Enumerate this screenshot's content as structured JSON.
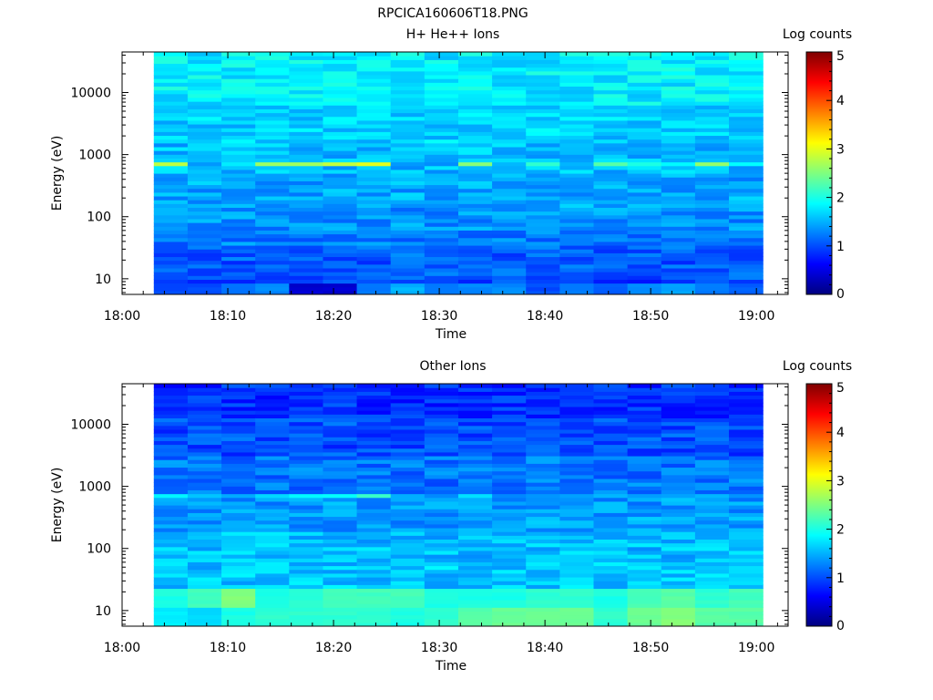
{
  "figure": {
    "title": "RPCICA160606T18.PNG"
  },
  "colormap_stops": [
    "#00007f",
    "#0000ff",
    "#007fff",
    "#00ffff",
    "#7fff7f",
    "#ffff00",
    "#ff7f00",
    "#ff0000",
    "#7f0000"
  ],
  "chart_data": [
    {
      "type": "heatmap",
      "title": "H+ He++ Ions",
      "xlabel": "Time",
      "ylabel": "Energy (eV)",
      "xticks": [
        "18:00",
        "18:10",
        "18:20",
        "18:30",
        "18:40",
        "18:50",
        "19:00"
      ],
      "xlim_minutes": [
        0,
        63
      ],
      "yscale": "log",
      "ylim": [
        5.6,
        45000
      ],
      "yticks": [
        10,
        100,
        1000,
        10000
      ],
      "ytick_labels": [
        "10",
        "100",
        "1000",
        "10000"
      ],
      "time_start_minutes": 3.0,
      "time_bin_minutes": 3.2,
      "n_time_bins": 18,
      "colorbar": {
        "label": "Log counts",
        "min": 0,
        "max": 5,
        "ticks": [
          "0",
          "1",
          "2",
          "3",
          "4",
          "5"
        ]
      },
      "profile": [
        {
          "energy_max": 10,
          "value": 0.95
        },
        {
          "energy_max": 20,
          "value": 1.05
        },
        {
          "energy_max": 35,
          "value": 1.1
        },
        {
          "energy_max": 60,
          "value": 1.25
        },
        {
          "energy_max": 150,
          "value": 1.35
        },
        {
          "energy_max": 500,
          "value": 1.45
        },
        {
          "energy_max": 1500,
          "value": 1.55
        },
        {
          "energy_max": 6000,
          "value": 1.65
        },
        {
          "energy_max": 45000,
          "value": 1.8
        }
      ],
      "features": [
        {
          "energy_min": 650,
          "energy_max": 800,
          "value_per_bin": [
            2.8,
            0,
            0,
            2.6,
            2.7,
            2.8,
            3.0,
            0,
            0,
            2.5,
            0,
            2.1,
            0,
            2.3,
            2.0,
            1.9,
            2.6,
            1.9
          ]
        },
        {
          "energy_min": 6,
          "energy_max": 9,
          "value_per_bin": [
            1.0,
            1.0,
            1.2,
            1.3,
            0.4,
            0.4,
            1.2,
            1.5,
            1.2,
            1.3,
            1.3,
            1.0,
            1.2,
            1.1,
            1.3,
            1.4,
            1.2,
            1.1
          ]
        }
      ]
    },
    {
      "type": "heatmap",
      "title": "Other Ions",
      "xlabel": "Time",
      "ylabel": "Energy (eV)",
      "xticks": [
        "18:00",
        "18:10",
        "18:20",
        "18:30",
        "18:40",
        "18:50",
        "19:00"
      ],
      "xlim_minutes": [
        0,
        63
      ],
      "yscale": "log",
      "ylim": [
        5.6,
        45000
      ],
      "yticks": [
        10,
        100,
        1000,
        10000
      ],
      "ytick_labels": [
        "10",
        "100",
        "1000",
        "10000"
      ],
      "time_start_minutes": 3.0,
      "time_bin_minutes": 3.2,
      "n_time_bins": 18,
      "colorbar": {
        "label": "Log counts",
        "min": 0,
        "max": 5,
        "ticks": [
          "0",
          "1",
          "2",
          "3",
          "4",
          "5"
        ]
      },
      "profile": [
        {
          "energy_max": 11,
          "value": 1.95
        },
        {
          "energy_max": 22,
          "value": 2.05
        },
        {
          "energy_max": 60,
          "value": 1.6
        },
        {
          "energy_max": 200,
          "value": 1.55
        },
        {
          "energy_max": 800,
          "value": 1.4
        },
        {
          "energy_max": 3000,
          "value": 1.2
        },
        {
          "energy_max": 12000,
          "value": 1.0
        },
        {
          "energy_max": 45000,
          "value": 0.85
        }
      ],
      "features": [
        {
          "energy_min": 650,
          "energy_max": 800,
          "value_per_bin": [
            1.8,
            1.6,
            1.5,
            1.7,
            1.8,
            1.9,
            2.1,
            1.5,
            1.3,
            1.7,
            1.3,
            1.4,
            1.4,
            1.5,
            1.4,
            1.4,
            1.5,
            1.4
          ]
        },
        {
          "energy_min": 11,
          "energy_max": 22,
          "value_per_bin": [
            2.0,
            2.2,
            2.5,
            2.0,
            2.1,
            2.2,
            2.2,
            2.2,
            2.0,
            2.0,
            2.0,
            2.1,
            2.1,
            2.0,
            2.2,
            2.3,
            2.1,
            2.2
          ]
        },
        {
          "energy_min": 6,
          "energy_max": 11,
          "value_per_bin": [
            1.8,
            1.7,
            2.0,
            2.1,
            2.1,
            2.1,
            2.1,
            2.0,
            2.1,
            2.3,
            2.4,
            2.4,
            2.4,
            2.1,
            2.4,
            2.5,
            2.3,
            2.3
          ]
        }
      ]
    }
  ]
}
